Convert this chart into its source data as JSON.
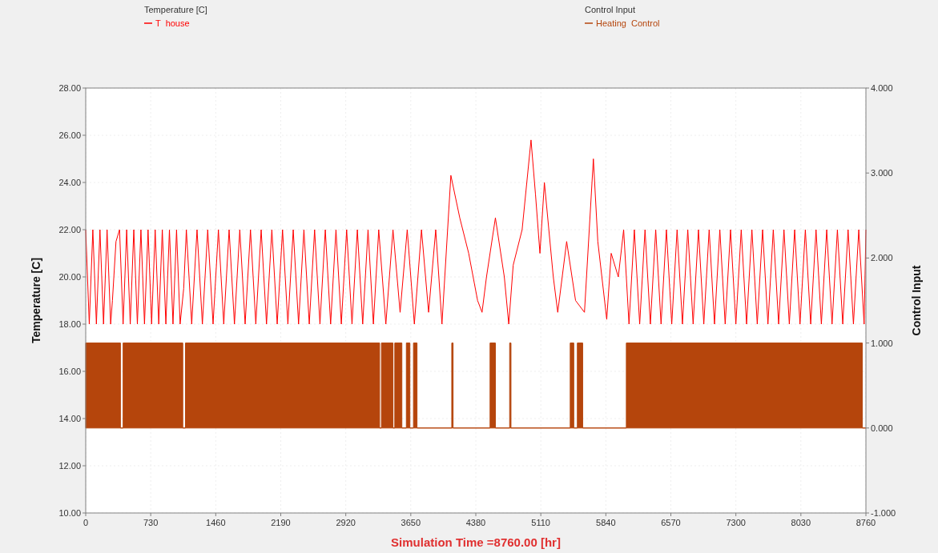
{
  "chart_data": {
    "type": "line",
    "xlabel": "Simulation Time =8760.00 [hr]",
    "ylabel": "Temperature [C]",
    "y2label": "Control Input",
    "annotations": [
      "Temperature [C]",
      "Control Input"
    ],
    "xlim": [
      0,
      8760
    ],
    "xticks": [
      0,
      730,
      1460,
      2190,
      2920,
      3650,
      4380,
      5110,
      5840,
      6570,
      7300,
      8030,
      8760
    ],
    "ylim": [
      10,
      28
    ],
    "yticks": [
      {
        "value": 10,
        "label": "10.00"
      },
      {
        "value": 12,
        "label": "12.00"
      },
      {
        "value": 14,
        "label": "14.00"
      },
      {
        "value": 16,
        "label": "16.00"
      },
      {
        "value": 18,
        "label": "18.00"
      },
      {
        "value": 20,
        "label": "20.00"
      },
      {
        "value": 22,
        "label": "22.00"
      },
      {
        "value": 24,
        "label": "24.00"
      },
      {
        "value": 26,
        "label": "26.00"
      },
      {
        "value": 28,
        "label": "28.00"
      }
    ],
    "y2lim": [
      -1,
      4
    ],
    "y2ticks": [
      {
        "value": -1,
        "label": "-1.000"
      },
      {
        "value": 0,
        "label": "0.000"
      },
      {
        "value": 1,
        "label": "1.000"
      },
      {
        "value": 2,
        "label": "2.000"
      },
      {
        "value": 3,
        "label": "3.000"
      },
      {
        "value": 4,
        "label": "4.000"
      }
    ],
    "grid": true,
    "legend": "top",
    "series": [
      {
        "name": "T  house",
        "color": "#ff0000",
        "type": "line",
        "x": [
          0,
          40,
          80,
          120,
          160,
          200,
          240,
          280,
          300,
          340,
          380,
          420,
          460,
          500,
          540,
          580,
          620,
          660,
          700,
          740,
          780,
          820,
          860,
          900,
          940,
          980,
          1020,
          1060,
          1100,
          1130,
          1190,
          1250,
          1310,
          1370,
          1430,
          1490,
          1550,
          1610,
          1670,
          1730,
          1790,
          1850,
          1910,
          1970,
          2030,
          2090,
          2150,
          2210,
          2270,
          2330,
          2390,
          2450,
          2510,
          2570,
          2630,
          2690,
          2750,
          2810,
          2870,
          2930,
          2990,
          3050,
          3110,
          3170,
          3230,
          3290,
          3370,
          3450,
          3530,
          3610,
          3690,
          3770,
          3850,
          3930,
          4000,
          4100,
          4200,
          4300,
          4400,
          4450,
          4500,
          4600,
          4700,
          4750,
          4800,
          4900,
          5000,
          5050,
          5100,
          5150,
          5250,
          5300,
          5400,
          5500,
          5600,
          5700,
          5750,
          5850,
          5900,
          5980,
          6040,
          6100,
          6160,
          6220,
          6280,
          6340,
          6400,
          6460,
          6520,
          6580,
          6640,
          6700,
          6760,
          6820,
          6880,
          6940,
          7000,
          7060,
          7120,
          7180,
          7240,
          7300,
          7360,
          7420,
          7480,
          7540,
          7600,
          7660,
          7720,
          7780,
          7840,
          7900,
          7960,
          8020,
          8080,
          8140,
          8200,
          8260,
          8320,
          8380,
          8440,
          8500,
          8560,
          8620,
          8680,
          8740,
          8760
        ],
        "values": [
          22,
          18,
          22,
          18,
          22,
          18,
          22,
          18,
          19,
          21.5,
          22,
          18,
          22,
          18,
          22,
          18,
          22,
          18,
          22,
          18,
          22,
          18,
          22,
          18,
          22,
          18,
          22,
          18,
          19.5,
          22,
          18,
          22,
          18,
          22,
          18,
          22,
          18,
          22,
          18,
          22,
          18,
          22,
          18,
          22,
          18,
          22,
          18,
          22,
          18,
          22,
          18,
          22,
          18,
          22,
          18,
          22,
          18,
          22,
          18,
          22,
          18,
          22,
          18,
          22,
          18,
          22,
          18,
          22,
          18.5,
          22,
          18,
          22,
          18.5,
          22,
          18,
          24.3,
          22.5,
          21,
          19,
          18.5,
          20,
          22.5,
          20,
          18,
          20.5,
          22,
          25.8,
          23.5,
          21,
          24,
          20,
          18.5,
          21.5,
          19,
          18.5,
          25,
          21.5,
          18.2,
          21,
          20,
          22,
          18,
          22,
          18,
          22,
          18,
          22,
          18,
          22,
          18,
          22,
          18,
          22,
          18,
          22,
          18,
          22,
          18,
          22,
          18,
          22,
          18,
          22,
          18,
          22,
          18,
          22,
          18,
          22,
          18,
          22,
          18,
          22,
          18,
          22,
          18,
          22,
          18,
          22,
          18,
          22,
          18,
          22,
          18,
          22,
          18,
          22
        ]
      },
      {
        "name": "Heating  Control",
        "color": "#b5450c",
        "type": "area",
        "axis": "y2",
        "x": [
          0,
          390,
          390,
          420,
          420,
          1090,
          1090,
          1120,
          1120,
          3300,
          3300,
          3320,
          3320,
          3450,
          3450,
          3470,
          3470,
          3550,
          3550,
          3600,
          3600,
          3640,
          3640,
          3680,
          3680,
          3720,
          3720,
          4110,
          4110,
          4125,
          4125,
          4540,
          4540,
          4600,
          4600,
          4760,
          4760,
          4775,
          4775,
          5440,
          5440,
          5480,
          5480,
          5520,
          5520,
          5580,
          5580,
          6070,
          6070,
          8720,
          8720,
          8760
        ],
        "values": [
          1,
          1,
          0,
          0,
          1,
          1,
          0,
          0,
          1,
          1,
          0,
          0,
          1,
          1,
          0,
          0,
          1,
          1,
          0,
          0,
          1,
          1,
          0,
          0,
          1,
          1,
          0,
          0,
          1,
          1,
          0,
          0,
          1,
          1,
          0,
          0,
          1,
          1,
          0,
          0,
          1,
          1,
          0,
          0,
          1,
          1,
          0,
          0,
          1,
          1,
          0,
          0
        ]
      }
    ]
  }
}
